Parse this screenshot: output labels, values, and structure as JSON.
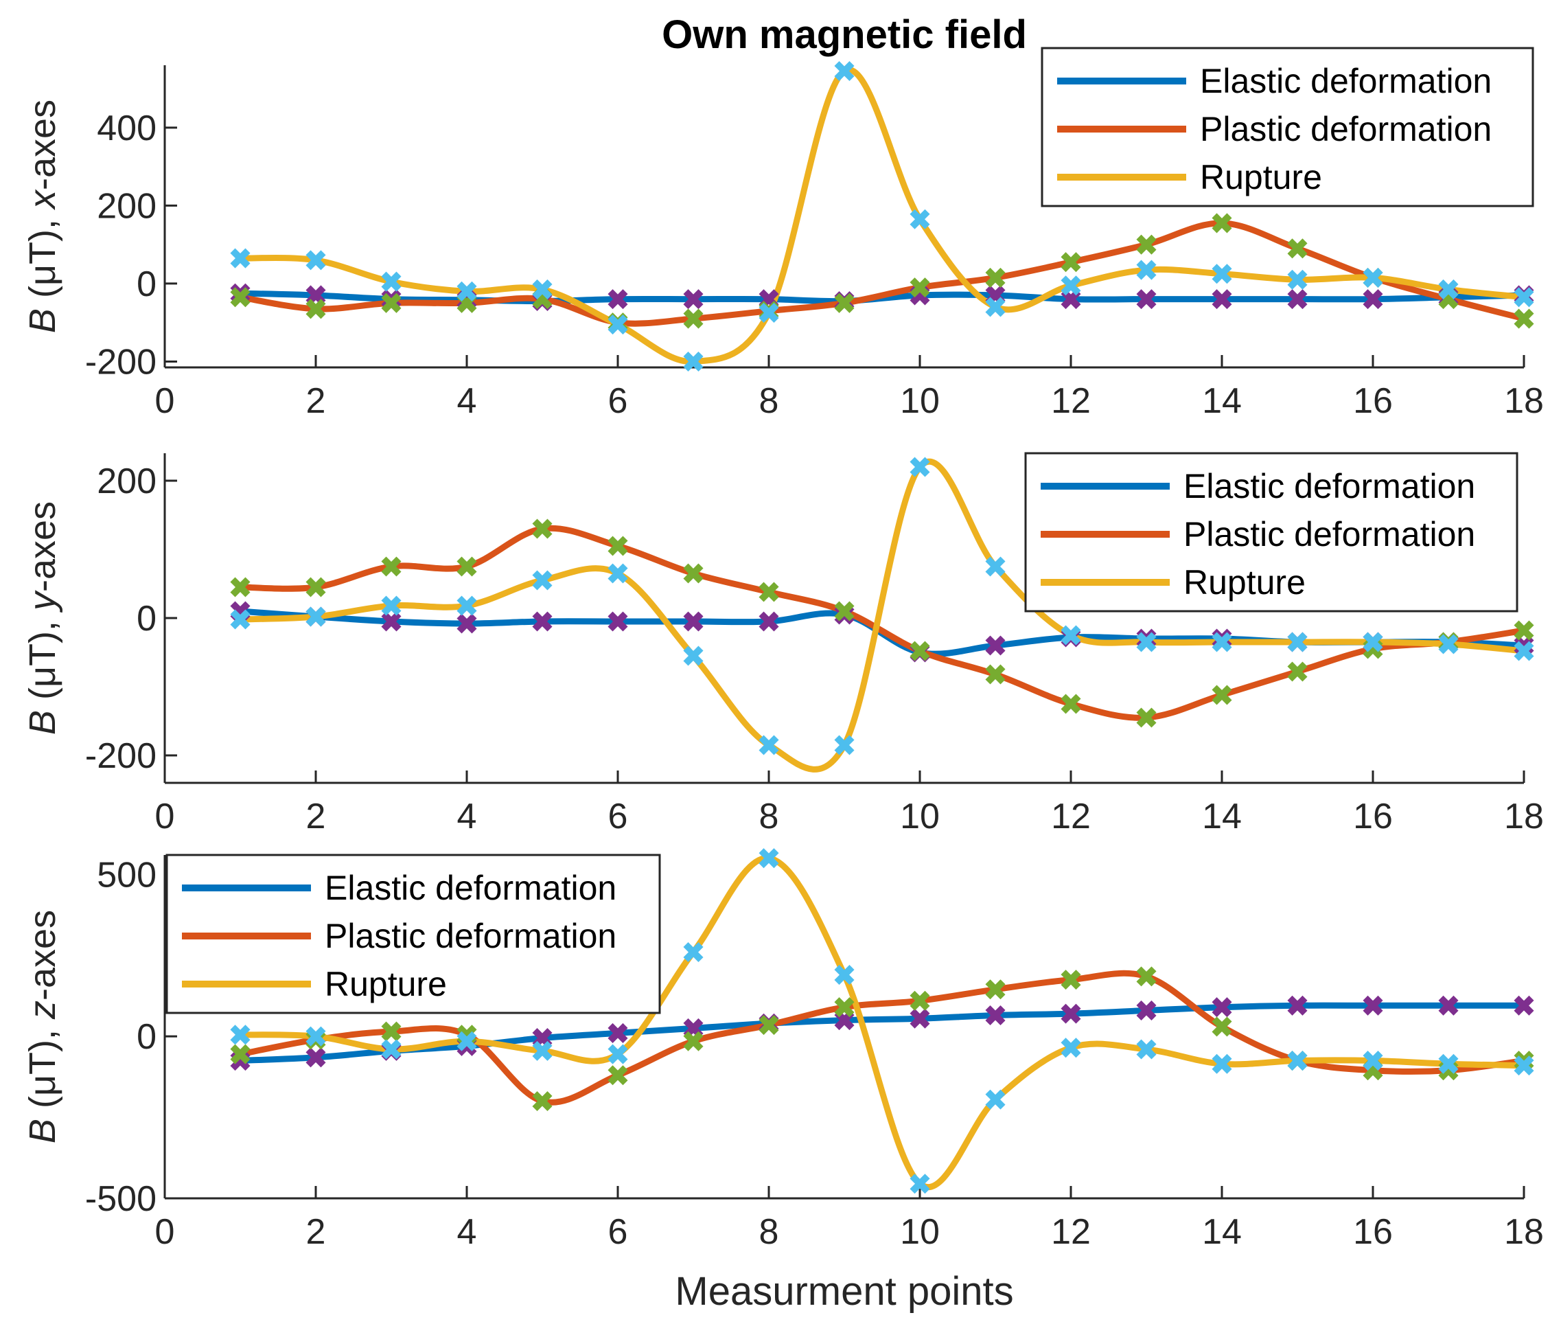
{
  "title": "Own magnetic field",
  "xlabel": "Measurment points",
  "chart_data": [
    {
      "type": "line",
      "ylabel_italic": "B",
      "ylabel_unit": " (μT), ",
      "ylabel_axis": "x",
      "ylabel_suffix": "-axes",
      "xlim": [
        0,
        18
      ],
      "ylim": [
        -215,
        560
      ],
      "xticks": [
        0,
        2,
        4,
        6,
        8,
        10,
        12,
        14,
        16,
        18
      ],
      "yticks": [
        -200,
        0,
        200,
        400
      ],
      "legend": [
        "Elastic deformation",
        "Plastic deformation",
        "Rupture"
      ],
      "legend_position": "top-right",
      "x": [
        1,
        2,
        3,
        4,
        5,
        6,
        7,
        8,
        9,
        10,
        11,
        12,
        13,
        14,
        15,
        16,
        17,
        18
      ],
      "series": [
        {
          "name": "Elastic deformation",
          "color": "#0072BD",
          "marker_color": "#7E2F8E",
          "values": [
            -25,
            -30,
            -40,
            -42,
            -45,
            -40,
            -40,
            -40,
            -45,
            -30,
            -30,
            -40,
            -40,
            -40,
            -40,
            -40,
            -35,
            -30
          ]
        },
        {
          "name": "Plastic deformation",
          "color": "#D95319",
          "marker_color": "#77AC30",
          "values": [
            -35,
            -65,
            -50,
            -50,
            -40,
            -100,
            -90,
            -70,
            -50,
            -10,
            15,
            55,
            100,
            155,
            90,
            15,
            -40,
            -90
          ]
        },
        {
          "name": "Rupture",
          "color": "#EDB120",
          "marker_color": "#4DBEEE",
          "values": [
            65,
            60,
            5,
            -20,
            -15,
            -105,
            -200,
            -75,
            545,
            165,
            -60,
            -5,
            35,
            25,
            10,
            15,
            -15,
            -35
          ]
        }
      ]
    },
    {
      "type": "line",
      "ylabel_italic": "B",
      "ylabel_unit": " (μT), ",
      "ylabel_axis": "y",
      "ylabel_suffix": "-axes",
      "xlim": [
        0,
        18
      ],
      "ylim": [
        -240,
        240
      ],
      "xticks": [
        0,
        2,
        4,
        6,
        8,
        10,
        12,
        14,
        16,
        18
      ],
      "yticks": [
        -200,
        0,
        200
      ],
      "legend": [
        "Elastic deformation",
        "Plastic deformation",
        "Rupture"
      ],
      "legend_position": "top-right",
      "x": [
        1,
        2,
        3,
        4,
        5,
        6,
        7,
        8,
        9,
        10,
        11,
        12,
        13,
        14,
        15,
        16,
        17,
        18
      ],
      "series": [
        {
          "name": "Elastic deformation",
          "color": "#0072BD",
          "marker_color": "#7E2F8E",
          "values": [
            10,
            2,
            -5,
            -8,
            -5,
            -5,
            -5,
            -5,
            5,
            -50,
            -40,
            -28,
            -30,
            -30,
            -35,
            -35,
            -35,
            -40
          ]
        },
        {
          "name": "Plastic deformation",
          "color": "#D95319",
          "marker_color": "#77AC30",
          "values": [
            45,
            45,
            75,
            75,
            130,
            105,
            65,
            38,
            10,
            -48,
            -82,
            -125,
            -145,
            -112,
            -78,
            -45,
            -35,
            -18
          ]
        },
        {
          "name": "Rupture",
          "color": "#EDB120",
          "marker_color": "#4DBEEE",
          "values": [
            -2,
            2,
            18,
            18,
            55,
            65,
            -55,
            -185,
            -185,
            220,
            75,
            -25,
            -35,
            -35,
            -35,
            -35,
            -38,
            -48
          ]
        }
      ]
    },
    {
      "type": "line",
      "ylabel_italic": "B",
      "ylabel_unit": " (μT), ",
      "ylabel_axis": "z",
      "ylabel_suffix": "-axes",
      "xlim": [
        0,
        18
      ],
      "ylim": [
        -500,
        560
      ],
      "xticks": [
        0,
        2,
        4,
        6,
        8,
        10,
        12,
        14,
        16,
        18
      ],
      "yticks": [
        -500,
        0,
        500
      ],
      "legend": [
        "Elastic deformation",
        "Plastic deformation",
        "Rupture"
      ],
      "legend_position": "top-left",
      "x": [
        1,
        2,
        3,
        4,
        5,
        6,
        7,
        8,
        9,
        10,
        11,
        12,
        13,
        14,
        15,
        16,
        17,
        18
      ],
      "series": [
        {
          "name": "Elastic deformation",
          "color": "#0072BD",
          "marker_color": "#7E2F8E",
          "values": [
            -75,
            -65,
            -45,
            -30,
            -5,
            10,
            25,
            40,
            50,
            55,
            65,
            70,
            80,
            90,
            95,
            95,
            95,
            95
          ]
        },
        {
          "name": "Plastic deformation",
          "color": "#D95319",
          "marker_color": "#77AC30",
          "values": [
            -55,
            -10,
            15,
            5,
            -200,
            -120,
            -15,
            35,
            90,
            110,
            145,
            175,
            185,
            30,
            -75,
            -105,
            -105,
            -75
          ]
        },
        {
          "name": "Rupture",
          "color": "#EDB120",
          "marker_color": "#4DBEEE",
          "values": [
            5,
            0,
            -40,
            -15,
            -45,
            -55,
            260,
            550,
            190,
            -455,
            -195,
            -35,
            -40,
            -85,
            -75,
            -75,
            -85,
            -90
          ]
        }
      ]
    }
  ]
}
